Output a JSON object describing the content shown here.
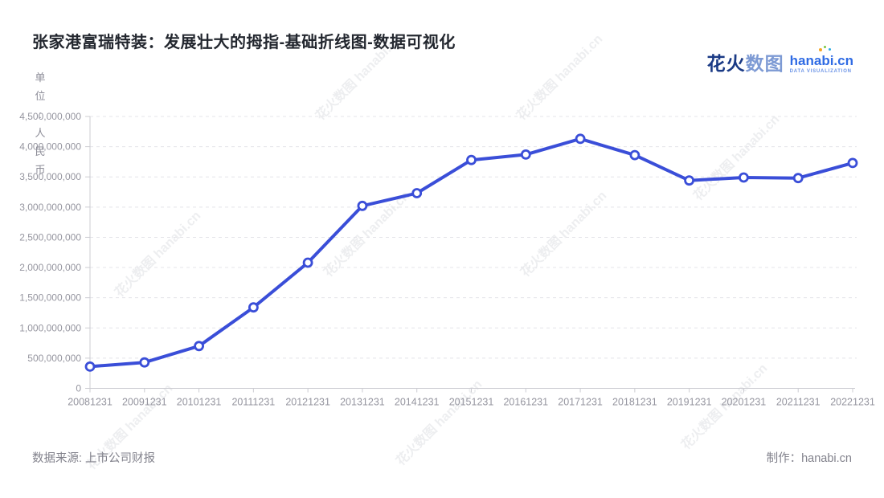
{
  "page": {
    "title": "张家港富瑞特装：发展壮大的拇指-基础折线图-数据可视化",
    "unit_label": "单\n位\n:\n人\n民\n币",
    "logo": {
      "brand_cn_primary": "花火",
      "brand_cn_secondary": "数图",
      "brand_domain": "hanabi.cn",
      "brand_tagline": "DATA VISUALIZATION"
    },
    "watermark_text": "花火数图 hanabi.cn",
    "footer": {
      "source_label": "数据来源: 上市公司财报",
      "credit_label": "制作：hanabi.cn"
    }
  },
  "colors": {
    "line": "#3a4ed8",
    "marker_fill": "#ffffff",
    "grid": "#e4e4e9",
    "axis": "#ccccd2",
    "axis_text": "#95959f",
    "title_text": "#23272f"
  },
  "chart_data": {
    "type": "line",
    "title": "张家港富瑞特装：发展壮大的拇指-基础折线图-数据可视化",
    "xlabel": "",
    "ylabel": "单位：人民币",
    "legend": "none",
    "grid": "horizontal-dashed",
    "marker": "open-circle",
    "ylim": [
      0,
      4500000000
    ],
    "y_ticks": [
      "0",
      "500,000,000",
      "1,000,000,000",
      "1,500,000,000",
      "2,000,000,000",
      "2,500,000,000",
      "3,000,000,000",
      "3,500,000,000",
      "4,000,000,000",
      "4,500,000,000"
    ],
    "categories": [
      "20081231",
      "20091231",
      "20101231",
      "20111231",
      "20121231",
      "20131231",
      "20141231",
      "20151231",
      "20161231",
      "20171231",
      "20181231",
      "20191231",
      "20201231",
      "20211231",
      "20221231"
    ],
    "series": [
      {
        "name": "",
        "values": [
          360000000,
          430000000,
          700000000,
          1340000000,
          2080000000,
          3020000000,
          3230000000,
          3780000000,
          3870000000,
          4130000000,
          3860000000,
          3440000000,
          3490000000,
          3480000000,
          3730000000
        ]
      }
    ]
  }
}
